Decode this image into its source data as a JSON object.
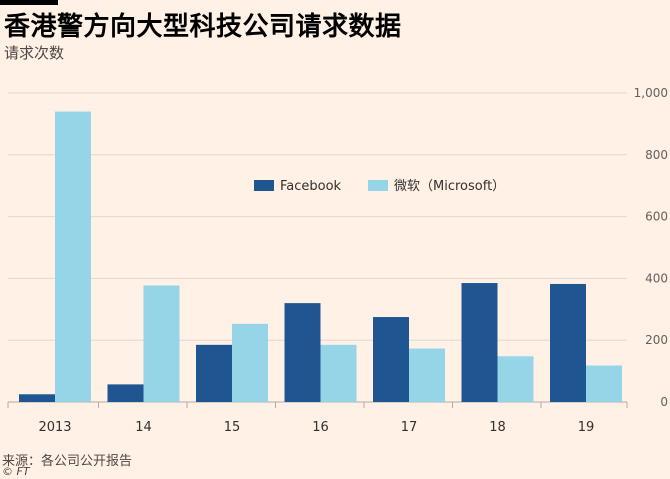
{
  "header": {
    "title": "香港警方向大型科技公司请求数据",
    "subtitle": "请求次数"
  },
  "footer": {
    "source": "来源：各公司公开报告",
    "credit": "© FT"
  },
  "colors": {
    "background": "#fff1e5",
    "facebook": "#1f5591",
    "microsoft": "#96d4e8",
    "grid": "#e0d8cf",
    "axis": "#b3aca5"
  },
  "chart_data": {
    "type": "bar",
    "title": "香港警方向大型科技公司请求数据",
    "ylabel": "请求次数",
    "categories": [
      "2013",
      "14",
      "15",
      "16",
      "17",
      "18",
      "19"
    ],
    "series": [
      {
        "name": "Facebook",
        "values": [
          25,
          57,
          185,
          320,
          275,
          385,
          382
        ]
      },
      {
        "name": "微软（Microsoft）",
        "values": [
          940,
          377,
          253,
          185,
          173,
          148,
          118
        ]
      }
    ],
    "ylim": [
      0,
      1000
    ],
    "yticks": [
      "0",
      "200",
      "400",
      "600",
      "800",
      "1,000"
    ],
    "ytick_values": [
      0,
      200,
      400,
      600,
      800,
      1000
    ],
    "grid": true,
    "legend": "top-center",
    "y_axis_side": "right"
  }
}
